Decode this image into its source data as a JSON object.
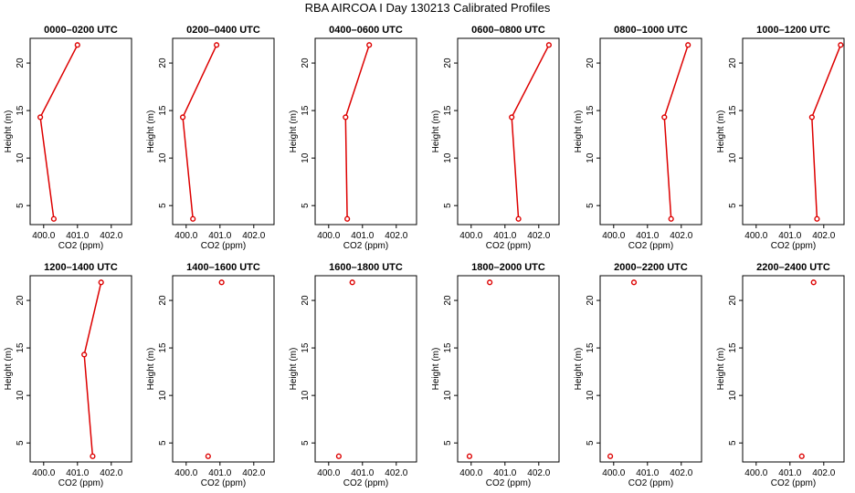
{
  "figure": {
    "title": "RBA AIRCOA I  Day 130213  Calibrated Profiles"
  },
  "colors": {
    "series": "#dd0000",
    "axis": "#000000"
  },
  "chart_data": [
    {
      "type": "line",
      "title": "0000–0200 UTC",
      "xlabel": "CO2 (ppm)",
      "ylabel": "Height (m)",
      "xlim": [
        399.6,
        402.6
      ],
      "ylim": [
        3.0,
        22.6
      ],
      "xticks": [
        "400.0",
        "401.0",
        "402.0"
      ],
      "yticks": [
        "5",
        "10",
        "15",
        "20"
      ],
      "points": [
        {
          "x": 401.0,
          "y": 21.9
        },
        {
          "x": 399.9,
          "y": 14.3
        },
        {
          "x": 400.3,
          "y": 3.6
        }
      ]
    },
    {
      "type": "line",
      "title": "0200–0400 UTC",
      "xlabel": "CO2 (ppm)",
      "ylabel": "Height (m)",
      "xlim": [
        399.6,
        402.6
      ],
      "ylim": [
        3.0,
        22.6
      ],
      "xticks": [
        "400.0",
        "401.0",
        "402.0"
      ],
      "yticks": [
        "5",
        "10",
        "15",
        "20"
      ],
      "points": [
        {
          "x": 400.9,
          "y": 21.9
        },
        {
          "x": 399.9,
          "y": 14.3
        },
        {
          "x": 400.2,
          "y": 3.6
        }
      ]
    },
    {
      "type": "line",
      "title": "0400–0600 UTC",
      "xlabel": "CO2 (ppm)",
      "ylabel": "Height (m)",
      "xlim": [
        399.6,
        402.6
      ],
      "ylim": [
        3.0,
        22.6
      ],
      "xticks": [
        "400.0",
        "401.0",
        "402.0"
      ],
      "yticks": [
        "5",
        "10",
        "15",
        "20"
      ],
      "points": [
        {
          "x": 401.2,
          "y": 21.9
        },
        {
          "x": 400.5,
          "y": 14.3
        },
        {
          "x": 400.55,
          "y": 3.6
        }
      ]
    },
    {
      "type": "line",
      "title": "0600–0800 UTC",
      "xlabel": "CO2 (ppm)",
      "ylabel": "Height (m)",
      "xlim": [
        399.6,
        402.6
      ],
      "ylim": [
        3.0,
        22.6
      ],
      "xticks": [
        "400.0",
        "401.0",
        "402.0"
      ],
      "yticks": [
        "5",
        "10",
        "15",
        "20"
      ],
      "points": [
        {
          "x": 402.3,
          "y": 21.9
        },
        {
          "x": 401.2,
          "y": 14.3
        },
        {
          "x": 401.4,
          "y": 3.6
        }
      ]
    },
    {
      "type": "line",
      "title": "0800–1000 UTC",
      "xlabel": "CO2 (ppm)",
      "ylabel": "Height (m)",
      "xlim": [
        399.6,
        402.6
      ],
      "ylim": [
        3.0,
        22.6
      ],
      "xticks": [
        "400.0",
        "401.0",
        "402.0"
      ],
      "yticks": [
        "5",
        "10",
        "15",
        "20"
      ],
      "points": [
        {
          "x": 402.2,
          "y": 21.9
        },
        {
          "x": 401.5,
          "y": 14.3
        },
        {
          "x": 401.7,
          "y": 3.6
        }
      ]
    },
    {
      "type": "line",
      "title": "1000–1200 UTC",
      "xlabel": "CO2 (ppm)",
      "ylabel": "Height (m)",
      "xlim": [
        399.6,
        402.6
      ],
      "ylim": [
        3.0,
        22.6
      ],
      "xticks": [
        "400.0",
        "401.0",
        "402.0"
      ],
      "yticks": [
        "5",
        "10",
        "15",
        "20"
      ],
      "points": [
        {
          "x": 402.5,
          "y": 21.9
        },
        {
          "x": 401.65,
          "y": 14.3
        },
        {
          "x": 401.8,
          "y": 3.6
        }
      ]
    },
    {
      "type": "line",
      "title": "1200–1400 UTC",
      "xlabel": "CO2 (ppm)",
      "ylabel": "Height (m)",
      "xlim": [
        399.6,
        402.6
      ],
      "ylim": [
        3.0,
        22.6
      ],
      "xticks": [
        "400.0",
        "401.0",
        "402.0"
      ],
      "yticks": [
        "5",
        "10",
        "15",
        "20"
      ],
      "points": [
        {
          "x": 401.7,
          "y": 21.9
        },
        {
          "x": 401.2,
          "y": 14.3
        },
        {
          "x": 401.45,
          "y": 3.6
        }
      ]
    },
    {
      "type": "scatter",
      "title": "1400–1600 UTC",
      "xlabel": "CO2 (ppm)",
      "ylabel": "Height (m)",
      "xlim": [
        399.6,
        402.6
      ],
      "ylim": [
        3.0,
        22.6
      ],
      "xticks": [
        "400.0",
        "401.0",
        "402.0"
      ],
      "yticks": [
        "5",
        "10",
        "15",
        "20"
      ],
      "points": [
        {
          "x": 401.05,
          "y": 21.9
        },
        {
          "x": 400.65,
          "y": 3.6
        }
      ]
    },
    {
      "type": "scatter",
      "title": "1600–1800 UTC",
      "xlabel": "CO2 (ppm)",
      "ylabel": "Height (m)",
      "xlim": [
        399.6,
        402.6
      ],
      "ylim": [
        3.0,
        22.6
      ],
      "xticks": [
        "400.0",
        "401.0",
        "402.0"
      ],
      "yticks": [
        "5",
        "10",
        "15",
        "20"
      ],
      "points": [
        {
          "x": 400.7,
          "y": 21.9
        },
        {
          "x": 400.3,
          "y": 3.6
        }
      ]
    },
    {
      "type": "scatter",
      "title": "1800–2000 UTC",
      "xlabel": "CO2 (ppm)",
      "ylabel": "Height (m)",
      "xlim": [
        399.6,
        402.6
      ],
      "ylim": [
        3.0,
        22.6
      ],
      "xticks": [
        "400.0",
        "401.0",
        "402.0"
      ],
      "yticks": [
        "5",
        "10",
        "15",
        "20"
      ],
      "points": [
        {
          "x": 400.55,
          "y": 21.9
        },
        {
          "x": 399.95,
          "y": 3.6
        }
      ]
    },
    {
      "type": "scatter",
      "title": "2000–2200 UTC",
      "xlabel": "CO2 (ppm)",
      "ylabel": "Height (m)",
      "xlim": [
        399.6,
        402.6
      ],
      "ylim": [
        3.0,
        22.6
      ],
      "xticks": [
        "400.0",
        "401.0",
        "402.0"
      ],
      "yticks": [
        "5",
        "10",
        "15",
        "20"
      ],
      "points": [
        {
          "x": 400.6,
          "y": 21.9
        },
        {
          "x": 399.9,
          "y": 3.6
        }
      ]
    },
    {
      "type": "scatter",
      "title": "2200–2400 UTC",
      "xlabel": "CO2 (ppm)",
      "ylabel": "Height (m)",
      "xlim": [
        399.6,
        402.6
      ],
      "ylim": [
        3.0,
        22.6
      ],
      "xticks": [
        "400.0",
        "401.0",
        "402.0"
      ],
      "yticks": [
        "5",
        "10",
        "15",
        "20"
      ],
      "points": [
        {
          "x": 401.7,
          "y": 21.9
        },
        {
          "x": 401.35,
          "y": 3.6
        }
      ]
    }
  ]
}
